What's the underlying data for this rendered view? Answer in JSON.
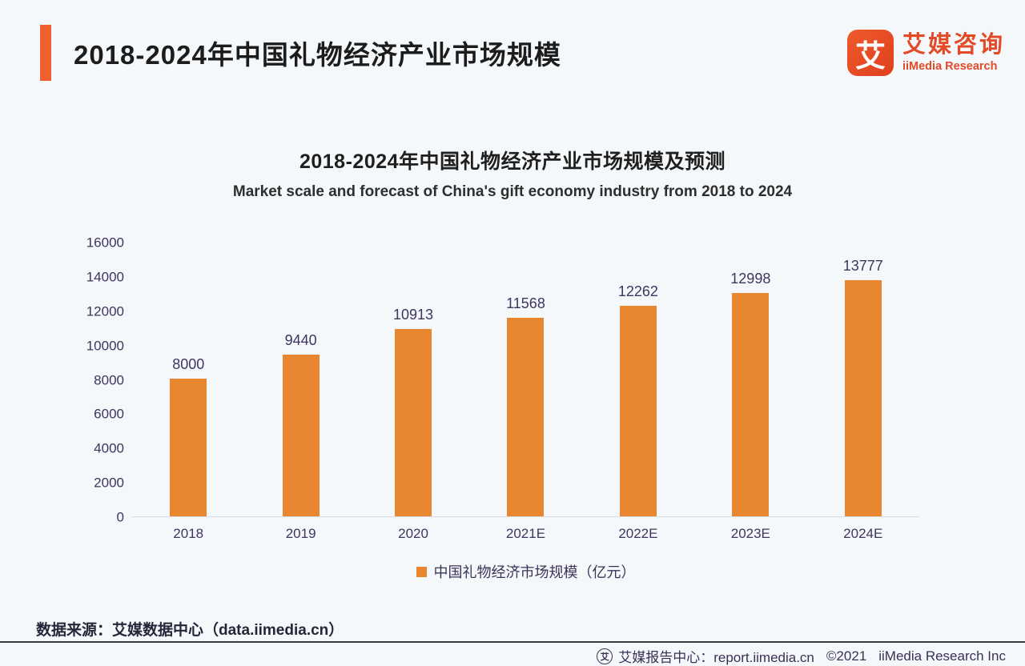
{
  "header": {
    "title": "2018-2024年中国礼物经济产业市场规模",
    "logo": {
      "mark": "艾",
      "name_cn": "艾媒咨询",
      "name_en": "iiMedia Research"
    }
  },
  "chart_data": {
    "type": "bar",
    "title": "2018-2024年中国礼物经济产业市场规模及预测",
    "subtitle": "Market scale and forecast of China's gift economy industry from 2018 to 2024",
    "categories": [
      "2018",
      "2019",
      "2020",
      "2021E",
      "2022E",
      "2023E",
      "2024E"
    ],
    "values": [
      8000,
      9440,
      10913,
      11568,
      12262,
      12998,
      13777
    ],
    "xlabel": "",
    "ylabel": "",
    "ylim": [
      0,
      16000
    ],
    "yticks": [
      0,
      2000,
      4000,
      6000,
      8000,
      10000,
      12000,
      14000,
      16000
    ],
    "grid": false,
    "legend": [
      "中国礼物经济市场规模（亿元）"
    ],
    "legend_position": "bottom",
    "bar_color": "#e8872f"
  },
  "legend": {
    "label": "中国礼物经济市场规模（亿元）",
    "swatch_color": "#e8872f"
  },
  "source": {
    "text": "数据来源：艾媒数据中心（data.iimedia.cn）"
  },
  "footer": {
    "icon": "艾",
    "report_center": "艾媒报告中心：report.iimedia.cn",
    "copyright": "©2021",
    "company": "iiMedia Research  Inc"
  },
  "colors": {
    "background": "#f5f8fa",
    "accent_orange": "#f0602d",
    "logo_orange": "#e24a28",
    "bar_orange": "#e8872f",
    "axis_text": "#3e3560",
    "footer_text": "#3a3157"
  }
}
